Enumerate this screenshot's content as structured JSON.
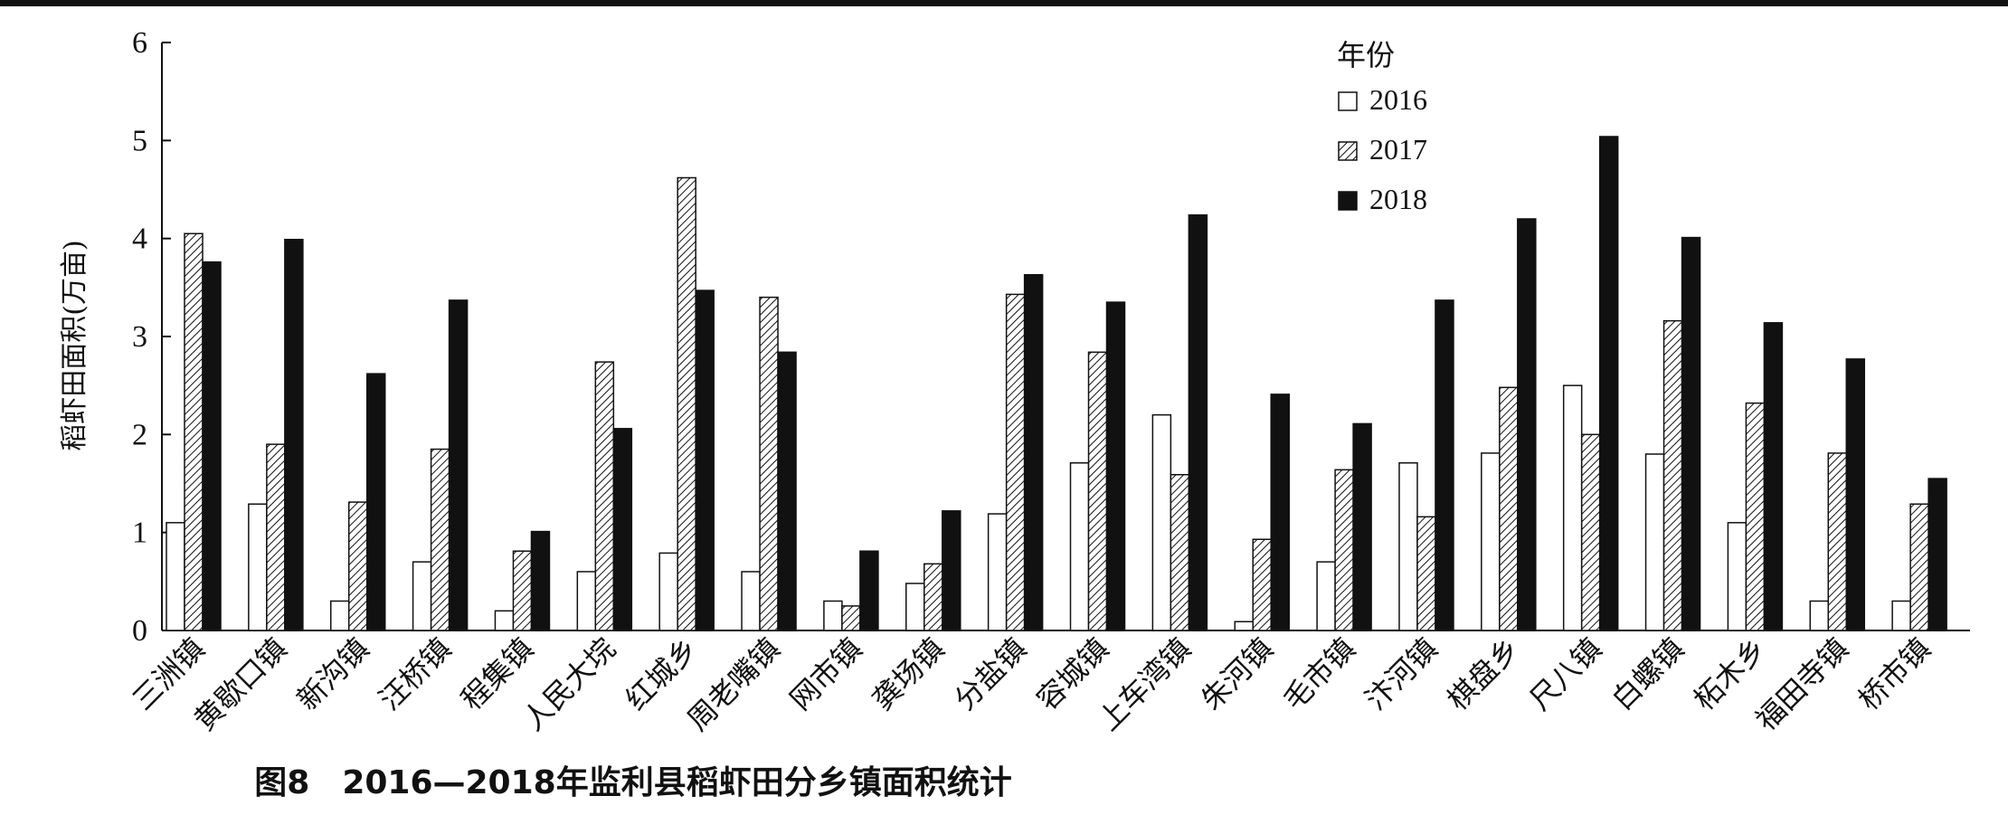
{
  "figure_caption": "图8　2016—2018年监利县稻虾田分乡镇面积统计",
  "chart_data": {
    "type": "bar",
    "title": "",
    "xlabel": "",
    "ylabel": "稻虾田面积(万亩)",
    "ylim": [
      0,
      6
    ],
    "yticks": [
      0,
      1,
      2,
      3,
      4,
      5,
      6
    ],
    "legend_title": "年份",
    "legend_position": "top-right",
    "categories": [
      "三洲镇",
      "黄歇口镇",
      "新沟镇",
      "汪桥镇",
      "程集镇",
      "人民大垸",
      "红城乡",
      "周老嘴镇",
      "网市镇",
      "龚场镇",
      "分盐镇",
      "容城镇",
      "上车湾镇",
      "朱河镇",
      "毛市镇",
      "汴河镇",
      "棋盘乡",
      "尺八镇",
      "白螺镇",
      "柘木乡",
      "福田寺镇",
      "桥市镇"
    ],
    "series": [
      {
        "name": "2016",
        "pattern": "white",
        "values": [
          1.1,
          1.29,
          0.3,
          0.7,
          0.2,
          0.6,
          0.79,
          0.6,
          0.3,
          0.48,
          1.19,
          1.71,
          2.2,
          0.09,
          0.7,
          1.71,
          1.81,
          2.5,
          1.8,
          1.1,
          0.3,
          0.3
        ]
      },
      {
        "name": "2017",
        "pattern": "hatched",
        "values": [
          4.05,
          1.9,
          1.31,
          1.85,
          0.81,
          2.74,
          4.62,
          3.4,
          0.25,
          0.68,
          3.43,
          2.84,
          1.59,
          0.93,
          1.64,
          1.16,
          2.48,
          2.0,
          3.16,
          2.32,
          1.81,
          1.29
        ]
      },
      {
        "name": "2018",
        "pattern": "black",
        "values": [
          3.76,
          3.99,
          2.62,
          3.37,
          1.01,
          2.06,
          3.47,
          2.84,
          0.81,
          1.22,
          3.63,
          3.35,
          4.24,
          2.41,
          2.11,
          3.37,
          4.2,
          5.04,
          4.01,
          3.14,
          2.77,
          1.55
        ]
      }
    ]
  }
}
